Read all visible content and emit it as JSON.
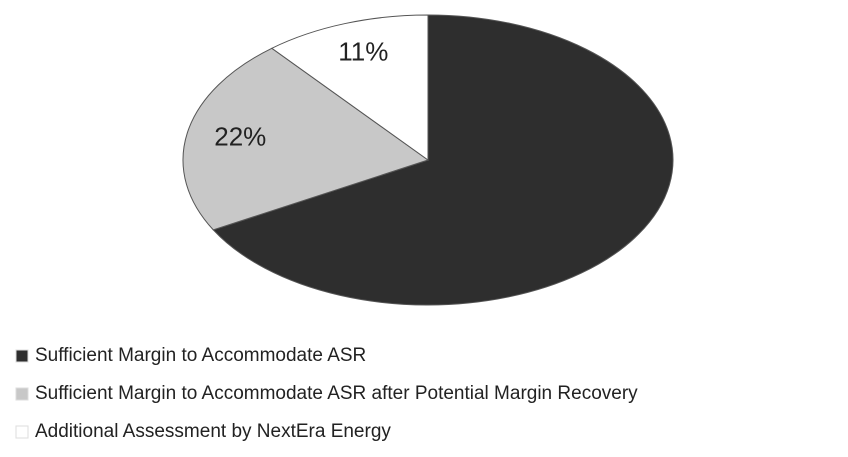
{
  "chart_data": {
    "type": "pie",
    "categories": [
      "Sufficient Margin to Accommodate ASR",
      "Sufficient Margin to Accommodate ASR after Potential Margin Recovery",
      "Additional Assessment by NextEra Energy"
    ],
    "values": [
      67,
      22,
      11
    ],
    "value_labels": [
      null,
      "22%",
      "11%"
    ],
    "colors": [
      "#2e2e2e",
      "#c8c8c8",
      "#ffffff"
    ],
    "legend": "bottom"
  }
}
